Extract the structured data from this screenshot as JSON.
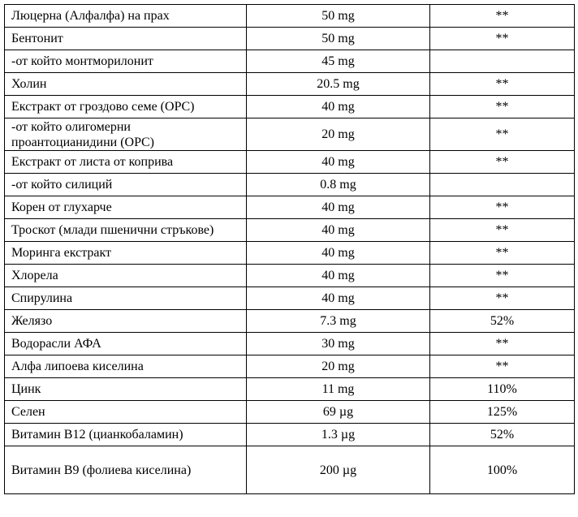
{
  "rows": [
    {
      "name": "Люцерна (Алфалфа) на прах",
      "amount": "50 mg",
      "dv": "**"
    },
    {
      "name": "Бентонит",
      "amount": "50 mg",
      "dv": "**"
    },
    {
      "name": "-от който монтморилонит",
      "amount": "45 mg",
      "dv": ""
    },
    {
      "name": "Холин",
      "amount": "20.5 mg",
      "dv": "**"
    },
    {
      "name": "Екстракт от гроздово семе (OPC)",
      "amount": "40 mg",
      "dv": "**"
    },
    {
      "name": "-от който олигомерни проантоцианидини (OPC)",
      "amount": "20 mg",
      "dv": "**"
    },
    {
      "name": "Екстракт от листа от коприва",
      "amount": "40 mg",
      "dv": "**"
    },
    {
      "name": "-от който силиций",
      "amount": "0.8 mg",
      "dv": ""
    },
    {
      "name": "Корен от глухарче",
      "amount": "40 mg",
      "dv": "**"
    },
    {
      "name": "Троскот (млади пшенични стръкове)",
      "amount": "40 mg",
      "dv": "**"
    },
    {
      "name": "Моринга  екстракт",
      "amount": "40 mg",
      "dv": "**"
    },
    {
      "name": "Хлорела",
      "amount": "40 mg",
      "dv": "**"
    },
    {
      "name": "Спирулина",
      "amount": "40 mg",
      "dv": "**"
    },
    {
      "name": "Желязо",
      "amount": "7.3 mg",
      "dv": "52%"
    },
    {
      "name": "Водорасли АФА",
      "amount": "30 mg",
      "dv": "**"
    },
    {
      "name": "Алфа липоева киселина",
      "amount": "20 mg",
      "dv": "**"
    },
    {
      "name": "Цинк",
      "amount": "11 mg",
      "dv": "110%"
    },
    {
      "name": "Селен",
      "amount": "69 µg",
      "dv": "125%"
    },
    {
      "name": "Витамин B12 (цианкобаламин)",
      "amount": "1.3 µg",
      "dv": "52%"
    },
    {
      "name": "Витамин B9 (фолиева киселина)",
      "amount": "200 µg",
      "dv": "100%"
    }
  ]
}
